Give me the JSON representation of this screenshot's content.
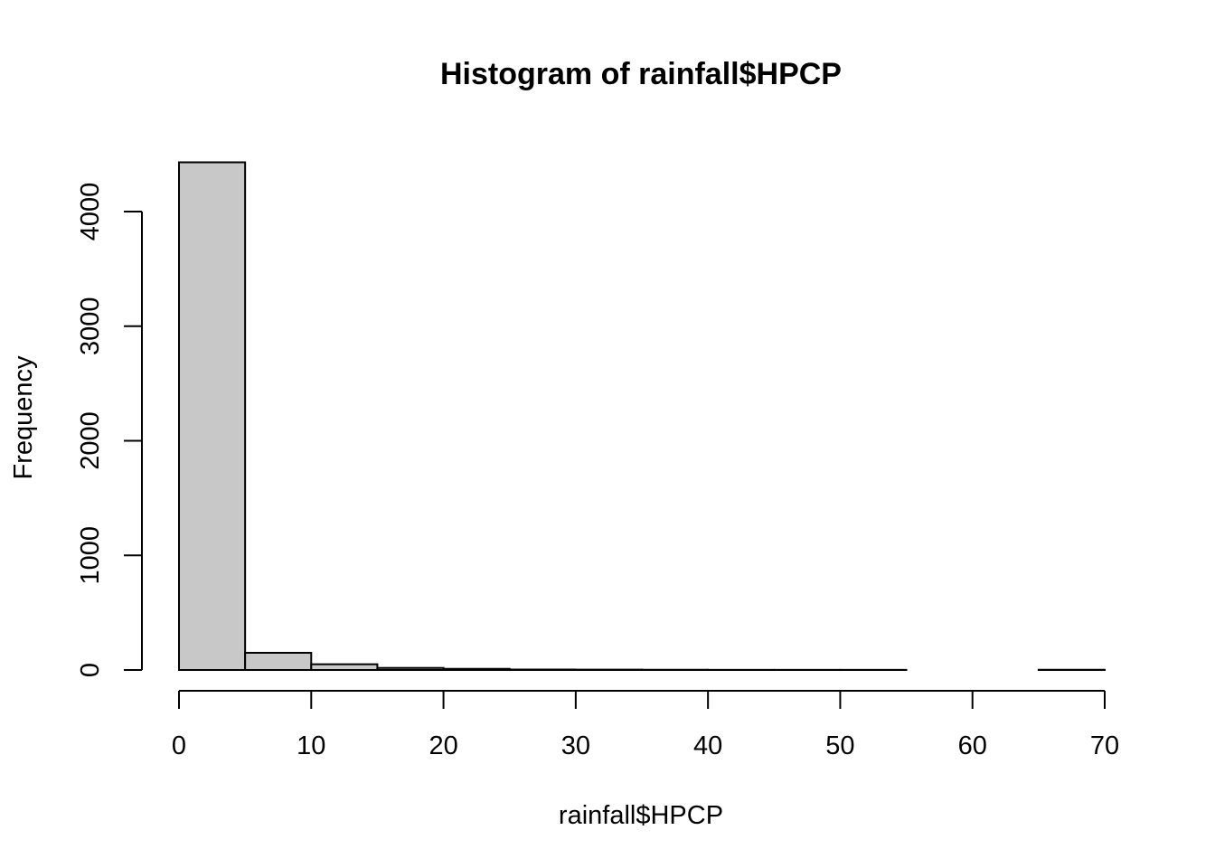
{
  "chart_data": {
    "type": "bar",
    "title": "Histogram of rainfall$HPCP",
    "xlabel": "rainfall$HPCP",
    "ylabel": "Frequency",
    "bin_width": 5,
    "bins": [
      {
        "x0": 0,
        "x1": 5,
        "count": 4430
      },
      {
        "x0": 5,
        "x1": 10,
        "count": 150
      },
      {
        "x0": 10,
        "x1": 15,
        "count": 50
      },
      {
        "x0": 15,
        "x1": 20,
        "count": 18
      },
      {
        "x0": 20,
        "x1": 25,
        "count": 10
      },
      {
        "x0": 25,
        "x1": 30,
        "count": 4
      },
      {
        "x0": 30,
        "x1": 35,
        "count": 3
      },
      {
        "x0": 35,
        "x1": 40,
        "count": 2
      },
      {
        "x0": 40,
        "x1": 45,
        "count": 1
      },
      {
        "x0": 45,
        "x1": 50,
        "count": 1
      },
      {
        "x0": 50,
        "x1": 55,
        "count": 1
      },
      {
        "x0": 55,
        "x1": 60,
        "count": 0
      },
      {
        "x0": 60,
        "x1": 65,
        "count": 0
      },
      {
        "x0": 65,
        "x1": 70,
        "count": 2
      }
    ],
    "xlim": [
      0,
      70
    ],
    "ylim": [
      0,
      4430
    ],
    "xticks": [
      0,
      10,
      20,
      30,
      40,
      50,
      60,
      70
    ],
    "yticks": [
      0,
      1000,
      2000,
      3000,
      4000
    ],
    "grid": false,
    "legend": "none",
    "bar_color": "#c8c8c8",
    "edge_color": "#000000"
  }
}
